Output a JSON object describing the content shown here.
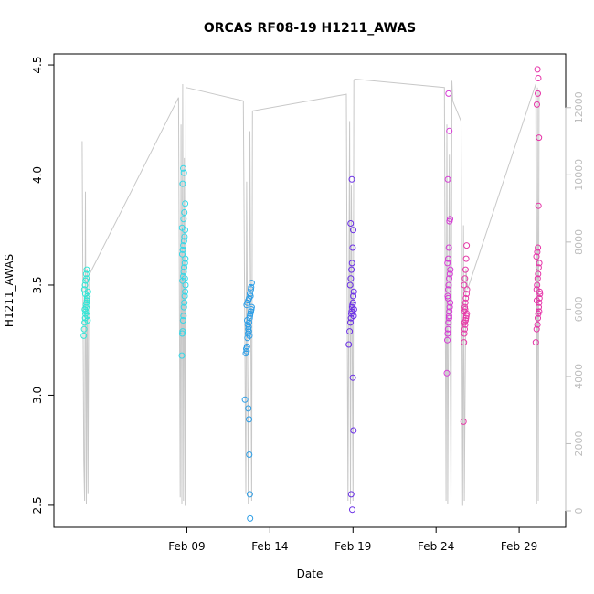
{
  "chart_data": {
    "type": "scatter",
    "title": "ORCAS RF08-19 H1211_AWAS",
    "xlabel": "Date",
    "ylabel": "H1211_AWAS",
    "secondary_axis": {
      "series_type": "line",
      "line_color": "#c8c8c8",
      "ylim": [
        0,
        13000
      ],
      "ticks": [
        0,
        2000,
        4000,
        6000,
        8000,
        10000,
        12000
      ],
      "tick_labels": [
        "0",
        "2000",
        "4000",
        "6000",
        "8000",
        "10000",
        "12000"
      ]
    },
    "ylim": [
      2.4,
      4.55
    ],
    "yticks": [
      2.5,
      3.0,
      3.5,
      4.0,
      4.5
    ],
    "ytick_labels": [
      "2.5",
      "3.0",
      "3.5",
      "4.0",
      "4.5"
    ],
    "xlim": [
      1.0,
      31.8
    ],
    "xticks": [
      9,
      14,
      19,
      24,
      29
    ],
    "xtick_labels": [
      "Feb 09",
      "Feb 14",
      "Feb 19",
      "Feb 24",
      "Feb 29"
    ],
    "grid": false,
    "legend": "none",
    "series": [
      {
        "color": "#33e6d6",
        "x": [
          2.8,
          2.82,
          2.85,
          2.88,
          2.9,
          2.92,
          2.95,
          2.97,
          3.0,
          3.02,
          3.05,
          2.83,
          2.87,
          2.91,
          2.94,
          2.98,
          3.01,
          2.86,
          2.93,
          2.99,
          3.03,
          2.89,
          2.96
        ],
        "y": [
          3.27,
          3.3,
          3.33,
          3.35,
          3.37,
          3.38,
          3.4,
          3.42,
          3.44,
          3.45,
          3.47,
          3.48,
          3.5,
          3.52,
          3.55,
          3.57,
          3.36,
          3.39,
          3.41,
          3.43,
          3.34,
          3.46,
          3.53
        ]
      },
      {
        "color": "#33d8e8",
        "x": [
          8.7,
          8.72,
          8.75,
          8.77,
          8.8,
          8.82,
          8.85,
          8.87,
          8.9,
          8.92,
          8.74,
          8.78,
          8.81,
          8.84,
          8.88,
          8.91,
          8.73,
          8.76,
          8.79,
          8.83,
          8.86,
          8.89,
          8.71,
          8.8,
          8.85,
          8.9,
          8.75,
          8.82,
          8.78,
          8.88
        ],
        "y": [
          3.18,
          3.28,
          3.29,
          3.34,
          3.36,
          3.4,
          3.42,
          3.45,
          3.47,
          3.5,
          3.52,
          3.54,
          3.56,
          3.58,
          3.6,
          3.62,
          3.64,
          3.66,
          3.68,
          3.7,
          3.72,
          3.75,
          3.76,
          3.8,
          3.83,
          3.87,
          3.96,
          4.01,
          4.03,
          3.53
        ]
      },
      {
        "color": "#2e9ee6",
        "x": [
          12.5,
          12.55,
          12.6,
          12.62,
          12.65,
          12.68,
          12.7,
          12.72,
          12.75,
          12.78,
          12.8,
          12.82,
          12.85,
          12.88,
          12.9,
          12.6,
          12.65,
          12.7,
          12.75,
          12.8,
          12.85,
          12.9,
          12.63,
          12.67,
          12.73,
          12.77,
          12.83,
          12.87,
          12.58,
          12.7,
          12.74,
          12.76,
          12.79,
          12.81
        ],
        "y": [
          2.98,
          3.19,
          3.2,
          3.22,
          3.26,
          3.28,
          3.3,
          3.31,
          3.33,
          3.35,
          3.36,
          3.37,
          3.38,
          3.39,
          3.4,
          3.41,
          3.42,
          3.43,
          3.44,
          3.46,
          3.48,
          3.51,
          3.34,
          3.32,
          3.29,
          3.27,
          3.45,
          3.49,
          3.21,
          2.94,
          2.89,
          2.73,
          2.55,
          2.44
        ]
      },
      {
        "color": "#6a2ee6",
        "x": [
          18.75,
          18.8,
          18.85,
          18.88,
          18.9,
          18.92,
          18.95,
          18.97,
          19.0,
          19.02,
          19.05,
          18.83,
          18.87,
          18.91,
          18.94,
          18.98,
          19.01,
          18.86,
          18.93,
          18.99,
          19.03,
          18.89,
          18.96,
          19.04,
          19.06
        ],
        "y": [
          3.23,
          3.29,
          3.33,
          3.35,
          3.37,
          3.38,
          3.4,
          3.41,
          3.42,
          3.45,
          3.47,
          3.5,
          3.53,
          3.57,
          3.6,
          3.67,
          3.75,
          3.78,
          3.98,
          3.08,
          2.84,
          2.55,
          2.48,
          3.36,
          3.39
        ]
      },
      {
        "color": "#d63ad6",
        "x": [
          24.65,
          24.68,
          24.7,
          24.72,
          24.75,
          24.78,
          24.8,
          24.82,
          24.85,
          24.7,
          24.73,
          24.76,
          24.79,
          24.83,
          24.86,
          24.69,
          24.74,
          24.77,
          24.81,
          24.84,
          24.71,
          24.8,
          24.75,
          24.72,
          24.78
        ],
        "y": [
          3.1,
          3.25,
          3.28,
          3.3,
          3.33,
          3.35,
          3.38,
          3.4,
          3.42,
          3.45,
          3.48,
          3.5,
          3.53,
          3.55,
          3.57,
          3.6,
          3.62,
          3.67,
          3.79,
          3.8,
          3.98,
          4.2,
          4.37,
          3.44,
          3.36
        ]
      },
      {
        "color": "#e63aa8",
        "x": [
          25.65,
          25.68,
          25.7,
          25.72,
          25.75,
          25.78,
          25.8,
          25.82,
          25.85,
          25.7,
          25.73,
          25.76,
          25.79,
          25.83,
          25.86,
          25.69,
          25.74,
          25.77,
          25.81,
          25.84,
          25.71,
          25.75
        ],
        "y": [
          2.88,
          3.24,
          3.28,
          3.3,
          3.32,
          3.34,
          3.35,
          3.36,
          3.37,
          3.38,
          3.4,
          3.42,
          3.44,
          3.46,
          3.48,
          3.5,
          3.53,
          3.57,
          3.62,
          3.68,
          3.33,
          3.39
        ]
      },
      {
        "color": "#e633a8",
        "x": [
          30.0,
          30.05,
          30.1,
          30.12,
          30.15,
          30.18,
          30.2,
          30.22,
          30.25,
          30.05,
          30.08,
          30.11,
          30.14,
          30.17,
          30.21,
          30.04,
          30.09,
          30.13,
          30.16,
          30.19,
          30.07,
          30.12,
          30.15,
          30.1,
          30.2,
          30.06,
          30.23
        ],
        "y": [
          3.24,
          3.3,
          3.32,
          3.35,
          3.37,
          3.4,
          3.42,
          3.44,
          3.46,
          3.48,
          3.5,
          3.53,
          3.55,
          3.58,
          3.6,
          3.63,
          3.65,
          3.67,
          3.86,
          4.17,
          4.32,
          4.37,
          4.44,
          4.48,
          3.38,
          3.43,
          3.47
        ]
      }
    ],
    "secondary_series": {
      "x": [
        2.7,
        2.8,
        2.85,
        2.9,
        2.95,
        3.0,
        3.05,
        3.1,
        8.5,
        8.6,
        8.65,
        8.7,
        8.75,
        8.8,
        8.85,
        8.9,
        8.95,
        12.4,
        12.55,
        12.6,
        12.7,
        12.8,
        12.9,
        12.95,
        18.6,
        18.7,
        18.8,
        18.85,
        18.9,
        19.0,
        19.05,
        19.1,
        24.5,
        24.6,
        24.65,
        24.7,
        24.8,
        24.9,
        24.95,
        25.0,
        25.5,
        25.6,
        25.65,
        25.7,
        25.8,
        25.9,
        30.0,
        30.05,
        30.1,
        30.15,
        30.2
      ],
      "y": [
        11000,
        1500,
        300,
        9500,
        200,
        7200,
        500,
        7000,
        12300,
        400,
        11500,
        200,
        12700,
        300,
        10500,
        150,
        12600,
        12200,
        500,
        9800,
        200,
        11300,
        300,
        11900,
        12400,
        300,
        11600,
        200,
        9700,
        300,
        12800,
        12850,
        12600,
        300,
        11500,
        200,
        10600,
        300,
        12800,
        12200,
        11600,
        150,
        8500,
        300,
        7200,
        6600,
        12700,
        200,
        12600,
        300,
        12500
      ]
    }
  }
}
